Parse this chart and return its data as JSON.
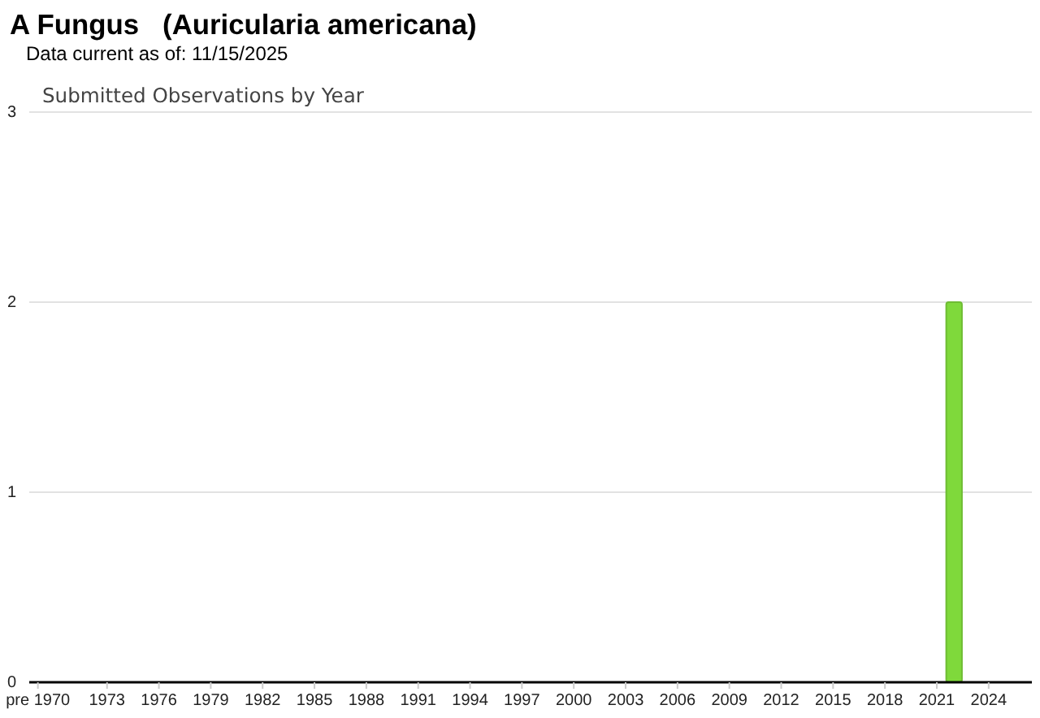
{
  "chart_data": {
    "type": "bar",
    "title": "A Fungus   (Auricularia americana)",
    "subtitle": "Data current as of: 11/15/2025",
    "annotations": [
      "Submitted Observations by Year"
    ],
    "categories": [
      "pre 1970",
      null,
      null,
      null,
      "1973",
      null,
      null,
      "1976",
      null,
      null,
      "1979",
      null,
      null,
      "1982",
      null,
      null,
      "1985",
      null,
      null,
      "1988",
      null,
      null,
      "1991",
      null,
      null,
      "1994",
      null,
      null,
      "1997",
      null,
      null,
      "2000",
      null,
      null,
      "2003",
      null,
      null,
      "2006",
      null,
      null,
      "2009",
      null,
      null,
      "2012",
      null,
      null,
      "2015",
      null,
      null,
      "2018",
      null,
      null,
      "2021",
      null,
      null,
      "2024",
      null,
      null
    ],
    "values": [
      0,
      0,
      0,
      0,
      0,
      0,
      0,
      0,
      0,
      0,
      0,
      0,
      0,
      0,
      0,
      0,
      0,
      0,
      0,
      0,
      0,
      0,
      0,
      0,
      0,
      0,
      0,
      0,
      0,
      0,
      0,
      0,
      0,
      0,
      0,
      0,
      0,
      0,
      0,
      0,
      0,
      0,
      0,
      0,
      0,
      0,
      0,
      0,
      0,
      0,
      0,
      0,
      0,
      2,
      0,
      0,
      0,
      0
    ],
    "color": "#7fd93b",
    "ylim": [
      0,
      3
    ],
    "yticks": [
      0,
      1,
      2,
      3
    ],
    "grid": "y"
  }
}
